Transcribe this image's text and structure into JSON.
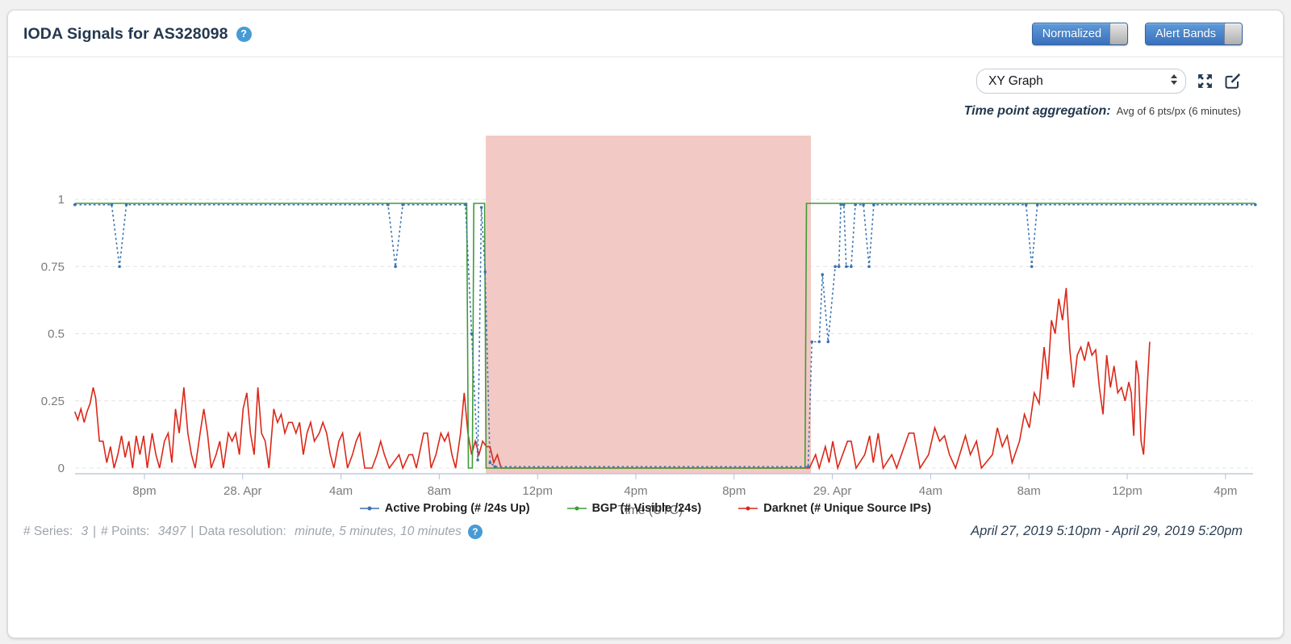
{
  "icons": {
    "help_glyph": "?"
  },
  "header": {
    "title": "IODA Signals for AS328098",
    "toggles": [
      {
        "label": "Normalized",
        "state": "on"
      },
      {
        "label": "Alert Bands",
        "state": "on"
      }
    ]
  },
  "controls": {
    "graph_type_value": "XY Graph",
    "aggregation_label": "Time point aggregation:",
    "aggregation_value": "Avg of 6 pts/px (6 minutes)"
  },
  "chart_data": {
    "type": "line",
    "title": "",
    "xlabel": "Time (UTC)",
    "x_unit": "hours since April 27, 2019 5:10pm UTC",
    "x_range": [
      0,
      48.17
    ],
    "ylim": [
      0,
      1.25
    ],
    "grid": "dashed-horizontal",
    "legend_position": "bottom-center",
    "y_ticks": [
      {
        "v": 0,
        "label": "0"
      },
      {
        "v": 0.25,
        "label": "0.25"
      },
      {
        "v": 0.5,
        "label": "0.5"
      },
      {
        "v": 0.75,
        "label": "0.75"
      },
      {
        "v": 1,
        "label": "1"
      }
    ],
    "x_ticks": [
      {
        "t": 2.833,
        "label": "8pm"
      },
      {
        "t": 6.833,
        "label": "28. Apr"
      },
      {
        "t": 10.833,
        "label": "4am"
      },
      {
        "t": 14.833,
        "label": "8am"
      },
      {
        "t": 18.833,
        "label": "12pm"
      },
      {
        "t": 22.833,
        "label": "4pm"
      },
      {
        "t": 26.833,
        "label": "8pm"
      },
      {
        "t": 30.833,
        "label": "29. Apr"
      },
      {
        "t": 34.833,
        "label": "4am"
      },
      {
        "t": 38.833,
        "label": "8am"
      },
      {
        "t": 42.833,
        "label": "12pm"
      },
      {
        "t": 46.833,
        "label": "4pm"
      }
    ],
    "alert_band": {
      "start_t": 16.73,
      "end_t": 29.96,
      "color": "#f2c9c4"
    },
    "series": [
      {
        "name": "Active Probing (# /24s Up)",
        "color": "#3a74b0",
        "style": "dotted",
        "points": [
          [
            0,
            0.98
          ],
          [
            1.5,
            0.98
          ],
          [
            1.82,
            0.75
          ],
          [
            2.1,
            0.98
          ],
          [
            12.75,
            0.98
          ],
          [
            13.05,
            0.75
          ],
          [
            13.35,
            0.98
          ],
          [
            15.9,
            0.98
          ],
          [
            16.15,
            0.5
          ],
          [
            16.4,
            0.03
          ],
          [
            16.55,
            0.97
          ],
          [
            16.7,
            0.73
          ],
          [
            16.9,
            0.02
          ],
          [
            17.1,
            0.005
          ],
          [
            29.85,
            0.005
          ],
          [
            30.0,
            0.47
          ],
          [
            30.3,
            0.47
          ],
          [
            30.43,
            0.72
          ],
          [
            30.66,
            0.47
          ],
          [
            30.95,
            0.75
          ],
          [
            31.1,
            0.75
          ],
          [
            31.18,
            0.98
          ],
          [
            31.3,
            0.98
          ],
          [
            31.4,
            0.75
          ],
          [
            31.6,
            0.75
          ],
          [
            31.77,
            0.98
          ],
          [
            32.1,
            0.98
          ],
          [
            32.33,
            0.75
          ],
          [
            32.52,
            0.98
          ],
          [
            38.72,
            0.98
          ],
          [
            38.95,
            0.75
          ],
          [
            39.18,
            0.98
          ],
          [
            48.05,
            0.98
          ]
        ]
      },
      {
        "name": "BGP (# Visible /24s)",
        "color": "#3f9b37",
        "style": "solid",
        "points": [
          [
            0,
            0.985
          ],
          [
            15.95,
            0.985
          ],
          [
            16.02,
            0
          ],
          [
            16.18,
            0
          ],
          [
            16.24,
            0.985
          ],
          [
            16.68,
            0.985
          ],
          [
            16.74,
            0
          ],
          [
            29.72,
            0
          ],
          [
            29.78,
            0.985
          ],
          [
            48.05,
            0.985
          ]
        ]
      },
      {
        "name": "Darknet (# Unique Source IPs)",
        "color": "#db2718",
        "style": "solid",
        "points": [
          [
            0,
            0.21
          ],
          [
            0.12,
            0.18
          ],
          [
            0.25,
            0.22
          ],
          [
            0.38,
            0.17
          ],
          [
            0.5,
            0.21
          ],
          [
            0.62,
            0.24
          ],
          [
            0.75,
            0.3
          ],
          [
            0.85,
            0.26
          ],
          [
            1,
            0.1
          ],
          [
            1.15,
            0.1
          ],
          [
            1.3,
            0.02
          ],
          [
            1.45,
            0.08
          ],
          [
            1.6,
            0
          ],
          [
            1.75,
            0.05
          ],
          [
            1.9,
            0.12
          ],
          [
            2.05,
            0.04
          ],
          [
            2.2,
            0.1
          ],
          [
            2.35,
            0
          ],
          [
            2.5,
            0.12
          ],
          [
            2.65,
            0.05
          ],
          [
            2.8,
            0.12
          ],
          [
            2.95,
            0
          ],
          [
            3.15,
            0.13
          ],
          [
            3.3,
            0.05
          ],
          [
            3.45,
            0
          ],
          [
            3.65,
            0.1
          ],
          [
            3.8,
            0.13
          ],
          [
            3.95,
            0.02
          ],
          [
            4.1,
            0.22
          ],
          [
            4.25,
            0.13
          ],
          [
            4.44,
            0.3
          ],
          [
            4.6,
            0.13
          ],
          [
            4.75,
            0.05
          ],
          [
            4.9,
            0
          ],
          [
            5.1,
            0.13
          ],
          [
            5.25,
            0.22
          ],
          [
            5.4,
            0.13
          ],
          [
            5.55,
            0
          ],
          [
            5.75,
            0.05
          ],
          [
            5.9,
            0.1
          ],
          [
            6.05,
            0
          ],
          [
            6.25,
            0.13
          ],
          [
            6.4,
            0.1
          ],
          [
            6.55,
            0.13
          ],
          [
            6.7,
            0.05
          ],
          [
            6.85,
            0.22
          ],
          [
            7,
            0.28
          ],
          [
            7.15,
            0.13
          ],
          [
            7.3,
            0.05
          ],
          [
            7.45,
            0.3
          ],
          [
            7.6,
            0.13
          ],
          [
            7.75,
            0.1
          ],
          [
            7.9,
            0
          ],
          [
            8.1,
            0.22
          ],
          [
            8.25,
            0.17
          ],
          [
            8.4,
            0.2
          ],
          [
            8.55,
            0.13
          ],
          [
            8.7,
            0.17
          ],
          [
            8.85,
            0.17
          ],
          [
            9,
            0.13
          ],
          [
            9.15,
            0.17
          ],
          [
            9.3,
            0.05
          ],
          [
            9.45,
            0.13
          ],
          [
            9.6,
            0.17
          ],
          [
            9.75,
            0.1
          ],
          [
            9.95,
            0.13
          ],
          [
            10.1,
            0.17
          ],
          [
            10.25,
            0.13
          ],
          [
            10.4,
            0.05
          ],
          [
            10.55,
            0
          ],
          [
            10.75,
            0.1
          ],
          [
            10.9,
            0.13
          ],
          [
            11.1,
            0
          ],
          [
            11.3,
            0.05
          ],
          [
            11.45,
            0.1
          ],
          [
            11.6,
            0.13
          ],
          [
            11.8,
            0
          ],
          [
            12.1,
            0
          ],
          [
            12.3,
            0.05
          ],
          [
            12.45,
            0.1
          ],
          [
            12.6,
            0.05
          ],
          [
            12.8,
            0
          ],
          [
            13.2,
            0.05
          ],
          [
            13.35,
            0
          ],
          [
            13.6,
            0.05
          ],
          [
            13.75,
            0.05
          ],
          [
            13.9,
            0
          ],
          [
            14.2,
            0.13
          ],
          [
            14.35,
            0.13
          ],
          [
            14.5,
            0
          ],
          [
            14.7,
            0.05
          ],
          [
            14.9,
            0.13
          ],
          [
            15.05,
            0.1
          ],
          [
            15.2,
            0.13
          ],
          [
            15.35,
            0.05
          ],
          [
            15.5,
            0
          ],
          [
            15.7,
            0.13
          ],
          [
            15.85,
            0.28
          ],
          [
            16,
            0.13
          ],
          [
            16.15,
            0.05
          ],
          [
            16.3,
            0.1
          ],
          [
            16.45,
            0.05
          ],
          [
            16.6,
            0.1
          ],
          [
            16.75,
            0.08
          ],
          [
            16.9,
            0.08
          ],
          [
            17.05,
            0.02
          ],
          [
            17.2,
            0.05
          ],
          [
            17.35,
            0
          ],
          [
            17.6,
            0
          ],
          [
            29.9,
            0
          ],
          [
            30.15,
            0.05
          ],
          [
            30.3,
            0
          ],
          [
            30.55,
            0.08
          ],
          [
            30.7,
            0.02
          ],
          [
            30.85,
            0.1
          ],
          [
            31.05,
            0
          ],
          [
            31.45,
            0.1
          ],
          [
            31.6,
            0.1
          ],
          [
            31.8,
            0
          ],
          [
            32.15,
            0.05
          ],
          [
            32.35,
            0.12
          ],
          [
            32.5,
            0.02
          ],
          [
            32.7,
            0.13
          ],
          [
            32.9,
            0
          ],
          [
            33.25,
            0.05
          ],
          [
            33.45,
            0
          ],
          [
            33.95,
            0.13
          ],
          [
            34.15,
            0.13
          ],
          [
            34.4,
            0
          ],
          [
            34.75,
            0.05
          ],
          [
            35,
            0.15
          ],
          [
            35.2,
            0.1
          ],
          [
            35.4,
            0.12
          ],
          [
            35.6,
            0.05
          ],
          [
            35.85,
            0
          ],
          [
            36.25,
            0.12
          ],
          [
            36.45,
            0.05
          ],
          [
            36.7,
            0.1
          ],
          [
            36.9,
            0
          ],
          [
            37.35,
            0.05
          ],
          [
            37.55,
            0.15
          ],
          [
            37.75,
            0.08
          ],
          [
            37.95,
            0.12
          ],
          [
            38.15,
            0.02
          ],
          [
            38.45,
            0.1
          ],
          [
            38.65,
            0.2
          ],
          [
            38.85,
            0.15
          ],
          [
            39.05,
            0.28
          ],
          [
            39.25,
            0.24
          ],
          [
            39.45,
            0.45
          ],
          [
            39.6,
            0.33
          ],
          [
            39.75,
            0.55
          ],
          [
            39.9,
            0.5
          ],
          [
            40.05,
            0.63
          ],
          [
            40.2,
            0.55
          ],
          [
            40.35,
            0.67
          ],
          [
            40.5,
            0.44
          ],
          [
            40.65,
            0.3
          ],
          [
            40.8,
            0.42
          ],
          [
            40.95,
            0.45
          ],
          [
            41.1,
            0.4
          ],
          [
            41.25,
            0.47
          ],
          [
            41.4,
            0.42
          ],
          [
            41.55,
            0.44
          ],
          [
            41.7,
            0.3
          ],
          [
            41.85,
            0.2
          ],
          [
            42,
            0.42
          ],
          [
            42.15,
            0.3
          ],
          [
            42.3,
            0.38
          ],
          [
            42.45,
            0.28
          ],
          [
            42.6,
            0.3
          ],
          [
            42.75,
            0.25
          ],
          [
            42.9,
            0.32
          ],
          [
            43,
            0.28
          ],
          [
            43.1,
            0.12
          ],
          [
            43.2,
            0.4
          ],
          [
            43.3,
            0.34
          ],
          [
            43.4,
            0.1
          ],
          [
            43.5,
            0.05
          ],
          [
            43.62,
            0.25
          ],
          [
            43.75,
            0.47
          ]
        ]
      }
    ]
  },
  "footer": {
    "separator": "|",
    "status_parts": [
      {
        "label": "# Series: ",
        "value": "3"
      },
      {
        "label": "# Points: ",
        "value": "3497"
      },
      {
        "label": "Data resolution: ",
        "value": "minute, 5 minutes, 10 minutes"
      }
    ],
    "date_range": "April 27, 2019 5:10pm - April 29, 2019 5:20pm"
  }
}
